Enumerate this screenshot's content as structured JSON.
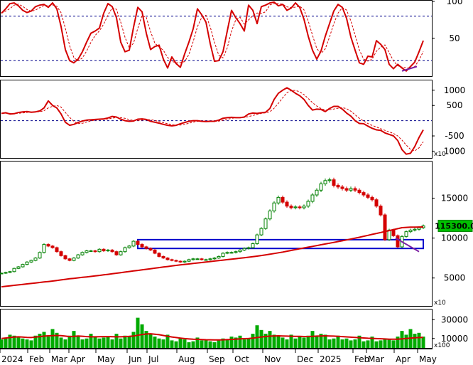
{
  "chart_data": [
    {
      "type": "line",
      "panel": "stochastic",
      "ylim": [
        0,
        100
      ],
      "y_ticks": [
        "100",
        "50"
      ],
      "levels": [
        80,
        20
      ],
      "series_color": "#d40000",
      "x": [
        0,
        6,
        12,
        18,
        24,
        30,
        36,
        42,
        48,
        54,
        60,
        66,
        72,
        78,
        84,
        90,
        96,
        102,
        108,
        114,
        120,
        126,
        132,
        138,
        144,
        150,
        156,
        162,
        168,
        174,
        180,
        186,
        192,
        198,
        204,
        210,
        216,
        222,
        228,
        234,
        240,
        246,
        252,
        258,
        264,
        270,
        276,
        282,
        288,
        294,
        300,
        306,
        312,
        318,
        324,
        330,
        336,
        342,
        348,
        354,
        360,
        366,
        372,
        378,
        384,
        390,
        396,
        402,
        408,
        414,
        420,
        426,
        432,
        438,
        444,
        450,
        456,
        462,
        468,
        474,
        480,
        486,
        492,
        498,
        504,
        510,
        516,
        522,
        528,
        534,
        540,
        546,
        552,
        558,
        564,
        570,
        576,
        582,
        588,
        594
      ],
      "values": [
        84,
        90,
        97,
        98,
        94,
        88,
        85,
        87,
        93,
        95,
        96,
        92,
        98,
        90,
        66,
        35,
        20,
        17,
        22,
        32,
        45,
        57,
        60,
        64,
        84,
        97,
        93,
        78,
        45,
        32,
        34,
        65,
        92,
        86,
        57,
        35,
        39,
        41,
        22,
        10,
        25,
        16,
        11,
        29,
        45,
        63,
        90,
        82,
        72,
        43,
        19,
        20,
        32,
        60,
        88,
        78,
        70,
        60,
        95,
        88,
        70,
        93,
        95,
        98,
        99,
        94,
        96,
        88,
        91,
        98,
        92,
        76,
        53,
        34,
        22,
        33,
        53,
        70,
        87,
        96,
        92,
        77,
        52,
        34,
        17,
        15,
        26,
        25,
        47,
        42,
        35,
        15,
        9,
        15,
        10,
        6,
        12,
        18,
        32,
        47
      ]
    },
    {
      "type": "line",
      "panel": "oscillator",
      "ylim": [
        -1200,
        1300
      ],
      "y_ticks": [
        "1000",
        "500",
        "-500",
        "1000"
      ],
      "scale_label": "x10",
      "levels": [
        0
      ],
      "series_color": "#d40000",
      "x": [
        0,
        6,
        12,
        18,
        24,
        30,
        36,
        42,
        48,
        54,
        60,
        66,
        72,
        78,
        84,
        90,
        96,
        102,
        108,
        114,
        120,
        126,
        132,
        138,
        144,
        150,
        156,
        162,
        168,
        174,
        180,
        186,
        192,
        198,
        204,
        210,
        216,
        222,
        228,
        234,
        240,
        246,
        252,
        258,
        264,
        270,
        276,
        282,
        288,
        294,
        300,
        306,
        312,
        318,
        324,
        330,
        336,
        342,
        348,
        354,
        360,
        366,
        372,
        378,
        384,
        390,
        396,
        402,
        408,
        414,
        420,
        426,
        432,
        438,
        444,
        450,
        456,
        462,
        468,
        474,
        480,
        486,
        492,
        498,
        504,
        510,
        516,
        522,
        528,
        534,
        540,
        546,
        552,
        558,
        564,
        570,
        576,
        582,
        588,
        594
      ],
      "values": [
        240,
        260,
        220,
        230,
        270,
        290,
        300,
        280,
        290,
        320,
        420,
        650,
        500,
        420,
        220,
        -50,
        -150,
        -120,
        -60,
        -10,
        20,
        30,
        40,
        50,
        60,
        90,
        140,
        120,
        50,
        0,
        -20,
        -10,
        50,
        60,
        40,
        -20,
        -50,
        -80,
        -120,
        -150,
        -170,
        -150,
        -100,
        -60,
        -20,
        0,
        0,
        -20,
        -30,
        -20,
        -20,
        20,
        80,
        100,
        110,
        100,
        100,
        120,
        220,
        250,
        240,
        260,
        280,
        400,
        700,
        900,
        1000,
        1080,
        1000,
        900,
        820,
        700,
        500,
        350,
        380,
        370,
        300,
        400,
        470,
        470,
        380,
        250,
        150,
        0,
        -90,
        -100,
        -180,
        -250,
        -300,
        -320,
        -400,
        -450,
        -500,
        -650,
        -950,
        -1100,
        -1070,
        -850,
        -550,
        -300
      ]
    },
    {
      "type": "candlestick",
      "panel": "price",
      "ylim": [
        1500,
        19500
      ],
      "y_ticks": [
        "15000",
        "10000",
        "5000"
      ],
      "scale_label": "x10",
      "last_price_label": "115300.0",
      "close_color": "#008000",
      "ma_color": "#d40000",
      "box_color": "#0000cc",
      "x": [
        0,
        6,
        12,
        18,
        24,
        30,
        36,
        42,
        48,
        54,
        60,
        66,
        72,
        78,
        84,
        90,
        96,
        102,
        108,
        114,
        120,
        126,
        132,
        138,
        144,
        150,
        156,
        162,
        168,
        174,
        180,
        186,
        192,
        198,
        204,
        210,
        216,
        222,
        228,
        234,
        240,
        246,
        252,
        258,
        264,
        270,
        276,
        282,
        288,
        294,
        300,
        306,
        312,
        318,
        324,
        330,
        336,
        342,
        348,
        354,
        360,
        366,
        372,
        378,
        384,
        390,
        396,
        402,
        408,
        414,
        420,
        426,
        432,
        438,
        444,
        450,
        456,
        462,
        468,
        474,
        480,
        486,
        492,
        498,
        504,
        510,
        516,
        522,
        528,
        534,
        540,
        546,
        552,
        558,
        564,
        570,
        576,
        582,
        588,
        594
      ],
      "close": [
        5600,
        5700,
        5800,
        6200,
        6400,
        6700,
        7000,
        7200,
        7500,
        8200,
        9200,
        9000,
        8800,
        8300,
        7800,
        7400,
        7200,
        7500,
        7900,
        8200,
        8400,
        8400,
        8300,
        8600,
        8400,
        8500,
        8300,
        7900,
        8300,
        8800,
        9000,
        9600,
        9200,
        8900,
        8700,
        8500,
        8100,
        7700,
        7500,
        7300,
        7200,
        7100,
        7000,
        7100,
        7300,
        7400,
        7400,
        7300,
        7300,
        7400,
        7500,
        7700,
        8100,
        8200,
        8200,
        8300,
        8500,
        8700,
        8800,
        9300,
        10400,
        11200,
        12400,
        13400,
        14400,
        15100,
        14500,
        14000,
        13800,
        13900,
        13800,
        14000,
        14600,
        15400,
        16000,
        16800,
        17200,
        17300,
        16600,
        16400,
        16200,
        16000,
        16200,
        16000,
        15700,
        15400,
        15100,
        14800,
        14000,
        12900,
        9800,
        11000,
        10300,
        8900,
        10200,
        10800,
        11000,
        11100,
        11300,
        11530
      ],
      "ma200": [
        3900,
        3960,
        4020,
        4080,
        4140,
        4200,
        4260,
        4320,
        4380,
        4440,
        4500,
        4560,
        4620,
        4690,
        4760,
        4830,
        4900,
        4960,
        5020,
        5080,
        5140,
        5200,
        5260,
        5320,
        5390,
        5460,
        5530,
        5600,
        5670,
        5740,
        5810,
        5880,
        5950,
        6020,
        6090,
        6160,
        6230,
        6300,
        6370,
        6440,
        6510,
        6580,
        6640,
        6700,
        6760,
        6820,
        6880,
        6940,
        7000,
        7060,
        7120,
        7180,
        7240,
        7300,
        7360,
        7420,
        7480,
        7540,
        7600,
        7670,
        7740,
        7820,
        7900,
        7980,
        8070,
        8160,
        8250,
        8350,
        8450,
        8560,
        8660,
        8760,
        8860,
        8960,
        9060,
        9160,
        9260,
        9360,
        9460,
        9560,
        9660,
        9770,
        9880,
        9990,
        10100,
        10220,
        10340,
        10460,
        10580,
        10700,
        10820,
        10940,
        11060,
        11180,
        11300,
        11340,
        11360,
        11370,
        11380,
        11390
      ],
      "box": {
        "x_start": 192,
        "x_end": 594,
        "y_low": 8700,
        "y_high": 9800
      },
      "trendline": {
        "x_start": 555,
        "x_end": 588,
        "y_start": 10000,
        "y_end": 8300
      }
    },
    {
      "type": "bar",
      "panel": "volume",
      "ylim": [
        0,
        40000
      ],
      "y_ticks": [
        "30000",
        "10000"
      ],
      "scale_label": "x100",
      "bar_color": "#00aa00",
      "ma_color": "#d40000",
      "x": [
        0,
        6,
        12,
        18,
        24,
        30,
        36,
        42,
        48,
        54,
        60,
        66,
        72,
        78,
        84,
        90,
        96,
        102,
        108,
        114,
        120,
        126,
        132,
        138,
        144,
        150,
        156,
        162,
        168,
        174,
        180,
        186,
        192,
        198,
        204,
        210,
        216,
        222,
        228,
        234,
        240,
        246,
        252,
        258,
        264,
        270,
        276,
        282,
        288,
        294,
        300,
        306,
        312,
        318,
        324,
        330,
        336,
        342,
        348,
        354,
        360,
        366,
        372,
        378,
        384,
        390,
        396,
        402,
        408,
        414,
        420,
        426,
        432,
        438,
        444,
        450,
        456,
        462,
        468,
        474,
        480,
        486,
        492,
        498,
        504,
        510,
        516,
        522,
        528,
        534,
        540,
        546,
        552,
        558,
        564,
        570,
        576,
        582,
        588,
        594
      ],
      "values": [
        9000,
        11000,
        14000,
        13000,
        12000,
        10000,
        9000,
        8000,
        13000,
        15000,
        17000,
        12000,
        20000,
        16000,
        11000,
        9000,
        13000,
        18000,
        12000,
        9000,
        10000,
        15000,
        12000,
        10000,
        11000,
        12000,
        9000,
        15000,
        10000,
        13000,
        12000,
        17000,
        32000,
        25000,
        18000,
        15000,
        12000,
        10000,
        9000,
        14000,
        8000,
        7000,
        10000,
        9000,
        6000,
        7000,
        11000,
        8000,
        8000,
        7000,
        6000,
        8000,
        10000,
        9000,
        12000,
        11000,
        13000,
        9000,
        10000,
        15000,
        24000,
        19000,
        15000,
        18000,
        14000,
        13000,
        11000,
        9000,
        14000,
        10000,
        12000,
        11000,
        13000,
        18000,
        12000,
        15000,
        14000,
        9000,
        10000,
        13000,
        9000,
        10000,
        8000,
        9000,
        13000,
        7000,
        8000,
        12000,
        7000,
        8000,
        9000,
        9000,
        8000,
        12000,
        18000,
        14000,
        20000,
        15000,
        16000,
        12000
      ],
      "ma": [
        10000,
        10500,
        11000,
        11500,
        11800,
        11500,
        11200,
        11000,
        11500,
        12000,
        12500,
        12800,
        13000,
        13200,
        13000,
        12500,
        12000,
        12300,
        12600,
        12400,
        12000,
        11800,
        11800,
        11900,
        12000,
        12100,
        11900,
        11800,
        11800,
        12000,
        12200,
        12600,
        13400,
        14200,
        14800,
        15000,
        14600,
        14000,
        13200,
        12400,
        11600,
        11000,
        10400,
        9900,
        9500,
        9200,
        9100,
        8900,
        8700,
        8600,
        8500,
        8500,
        8600,
        8800,
        9000,
        9300,
        9600,
        9800,
        10000,
        10400,
        11000,
        11600,
        12100,
        12500,
        12700,
        12800,
        12700,
        12500,
        12400,
        12300,
        12200,
        12100,
        12100,
        12300,
        12500,
        12700,
        12800,
        12700,
        12500,
        12300,
        12000,
        11700,
        11400,
        11100,
        10900,
        10600,
        10300,
        10100,
        9900,
        9700,
        9500,
        9300,
        9200,
        9300,
        9600,
        10000,
        10400,
        10800,
        11000,
        11100
      ]
    }
  ],
  "x_axis": {
    "labels": [
      "2024",
      "Feb",
      "Mar",
      "Apr",
      "May",
      "Jun",
      "Jul",
      "Aug",
      "Sep",
      "Oct",
      "Nov",
      "Dec",
      "2025",
      "Feb",
      "Mar",
      "Apr",
      "May"
    ]
  }
}
